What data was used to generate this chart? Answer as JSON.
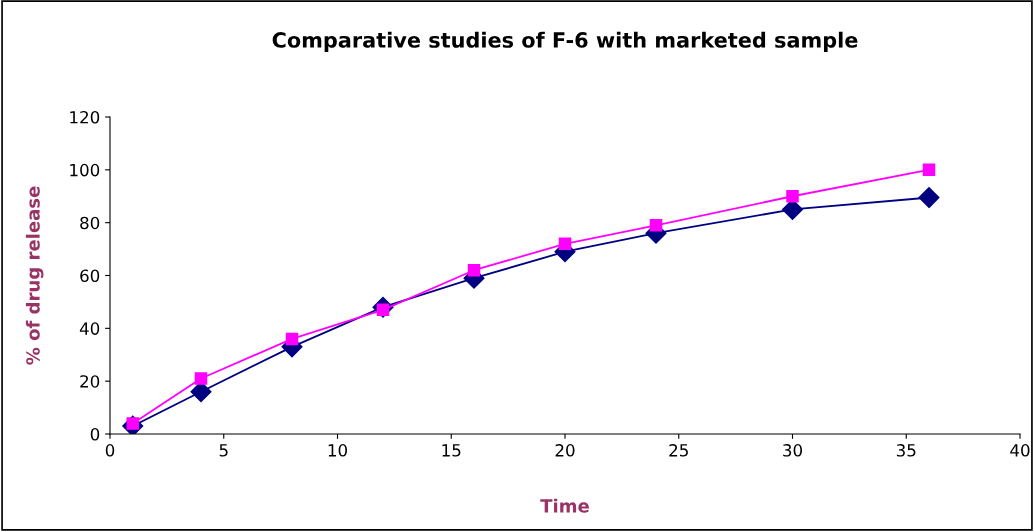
{
  "chart_data": {
    "type": "line",
    "title": "Comparative studies of F-6 with marketed sample",
    "xlabel": "Time",
    "ylabel": "% of drug release",
    "x": [
      1,
      4,
      8,
      12,
      16,
      20,
      24,
      30,
      36
    ],
    "series": [
      {
        "color": "#000080",
        "marker": "diamond",
        "values": [
          3,
          16,
          33,
          48,
          59,
          69,
          76,
          85,
          89.5
        ]
      },
      {
        "color": "#ff00ff",
        "marker": "square",
        "values": [
          4,
          21,
          36,
          47,
          62,
          72,
          79,
          90,
          100
        ]
      }
    ],
    "xlim": [
      0,
      40
    ],
    "xticks": [
      0,
      5,
      10,
      15,
      20,
      25,
      30,
      35,
      40
    ],
    "ylim": [
      0,
      120
    ],
    "yticks": [
      0,
      20,
      40,
      60,
      80,
      100,
      120
    ],
    "grid": false,
    "legend": false,
    "line_style": "solid"
  }
}
